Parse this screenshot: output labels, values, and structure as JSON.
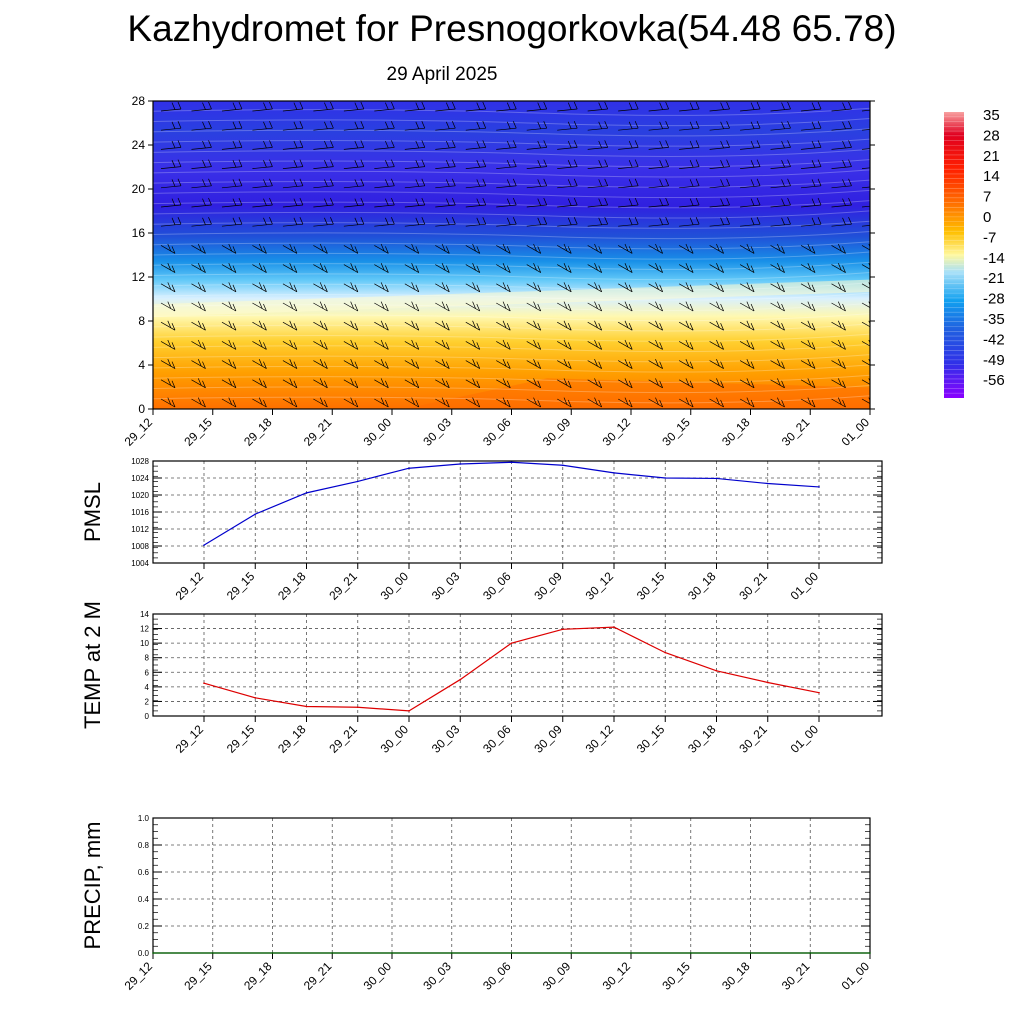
{
  "page": {
    "title": "Kazhydromet for Presnogorkovka(54.48 65.78)",
    "subtitle": "29 April 2025"
  },
  "colors": {
    "pmsl_line": "#0000cc",
    "temp_line": "#dd0000",
    "precip_line": "#006400",
    "grid": "#555555"
  },
  "chart_data": [
    {
      "type": "heatmap",
      "name": "cross-section",
      "x_ticks": [
        "29_12",
        "29_15",
        "29_18",
        "29_21",
        "30_00",
        "30_03",
        "30_06",
        "30_09",
        "30_12",
        "30_15",
        "30_18",
        "30_21",
        "01_00"
      ],
      "y_ticks": [
        0,
        4,
        8,
        12,
        16,
        20,
        24,
        28
      ],
      "ylim": [
        0,
        28
      ],
      "colorbar_labels": [
        "35",
        "28",
        "21",
        "14",
        "7",
        "0",
        "-7",
        "-14",
        "-21",
        "-28",
        "-35",
        "-42",
        "-49",
        "-56"
      ],
      "overlay": "wind barbs"
    },
    {
      "type": "line",
      "ylabel": "PMSL",
      "x": [
        "29_12",
        "29_15",
        "29_18",
        "29_21",
        "30_00",
        "30_03",
        "30_06",
        "30_09",
        "30_12",
        "30_15",
        "30_18",
        "30_21",
        "01_00"
      ],
      "values": [
        1008.2,
        1015.5,
        1020.5,
        1023.2,
        1026.3,
        1027.3,
        1027.7,
        1027.0,
        1025.2,
        1024.0,
        1023.9,
        1022.7,
        1021.9
      ],
      "y_ticks": [
        1004,
        1008,
        1012,
        1016,
        1020,
        1024,
        1028
      ],
      "ylim": [
        1004,
        1028
      ],
      "grid": true
    },
    {
      "type": "line",
      "ylabel": "TEMP at 2 M",
      "x": [
        "29_12",
        "29_15",
        "29_18",
        "29_21",
        "30_00",
        "30_03",
        "30_06",
        "30_09",
        "30_12",
        "30_15",
        "30_18",
        "30_21",
        "01_00"
      ],
      "values": [
        4.5,
        2.5,
        1.3,
        1.2,
        0.7,
        5.0,
        10.0,
        11.9,
        12.2,
        8.7,
        6.2,
        4.6,
        3.2
      ],
      "y_ticks": [
        0,
        2,
        4,
        6,
        8,
        10,
        12,
        14
      ],
      "ylim": [
        0,
        14
      ],
      "grid": true
    },
    {
      "type": "line",
      "ylabel": "PRECIP, mm",
      "x_ticks": [
        "29_12",
        "29_15",
        "29_18",
        "29_21",
        "30_00",
        "30_03",
        "30_06",
        "30_09",
        "30_12",
        "30_15",
        "30_18",
        "30_21",
        "01_00"
      ],
      "values": [
        0,
        0,
        0,
        0,
        0,
        0,
        0,
        0,
        0,
        0,
        0,
        0,
        0
      ],
      "y_ticks": [
        "0.0",
        "0.2",
        "0.4",
        "0.6",
        "0.8",
        "1.0"
      ],
      "ylim": [
        0,
        1
      ],
      "grid": true
    }
  ]
}
